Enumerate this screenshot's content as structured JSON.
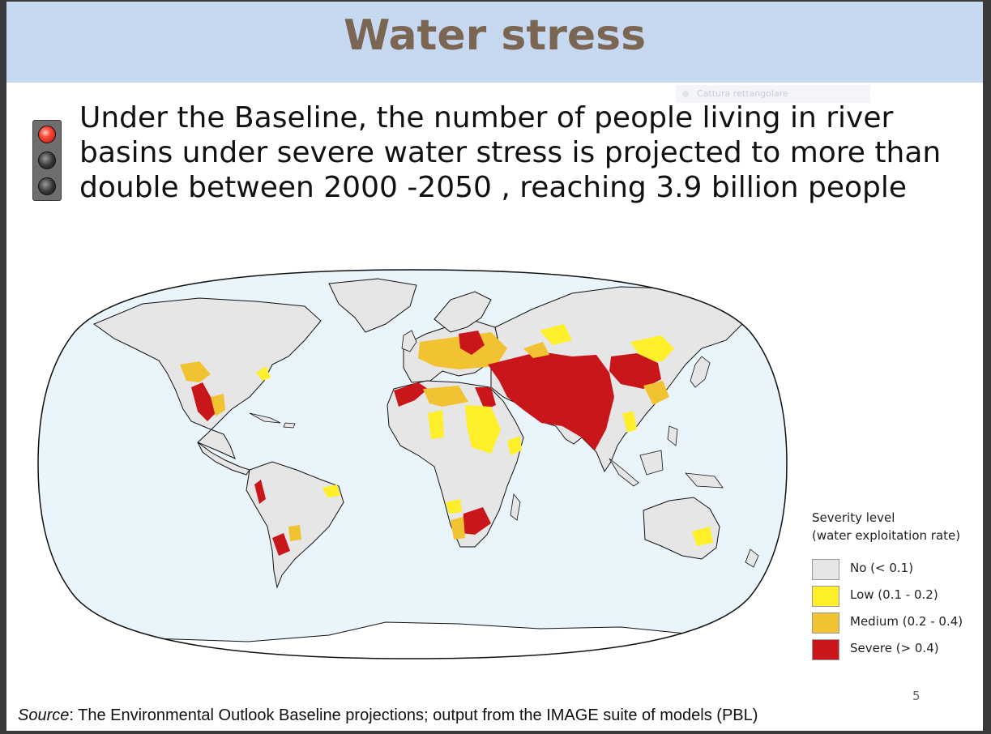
{
  "title": "Water stress",
  "overlay_hint": "Cattura rettangolare",
  "bullet": {
    "icon": "traffic-light-red-icon",
    "text": "Under the Baseline, the number of people living in river basins under severe water stress is projected to more than double between 2000 -2050 , reaching 3.9 billion people"
  },
  "map": {
    "projection": "Robinson",
    "ocean_color": "#eaf4fb",
    "land_color": "#e6e6e6"
  },
  "legend": {
    "title_line1": "Severity level",
    "title_line2": "(water exploitation rate)",
    "items": [
      {
        "label": "No (< 0.1)",
        "color": "#e6e6e6"
      },
      {
        "label": "Low (0.1 - 0.2)",
        "color": "#ffef2a"
      },
      {
        "label": "Medium (0.2 - 0.4)",
        "color": "#f1c232"
      },
      {
        "label": "Severe (> 0.4)",
        "color": "#c8161b"
      }
    ]
  },
  "page_number": "5",
  "source": {
    "prefix": "Source",
    "text": ": The Environmental Outlook Baseline projections; output from the IMAGE suite of models (PBL)"
  }
}
